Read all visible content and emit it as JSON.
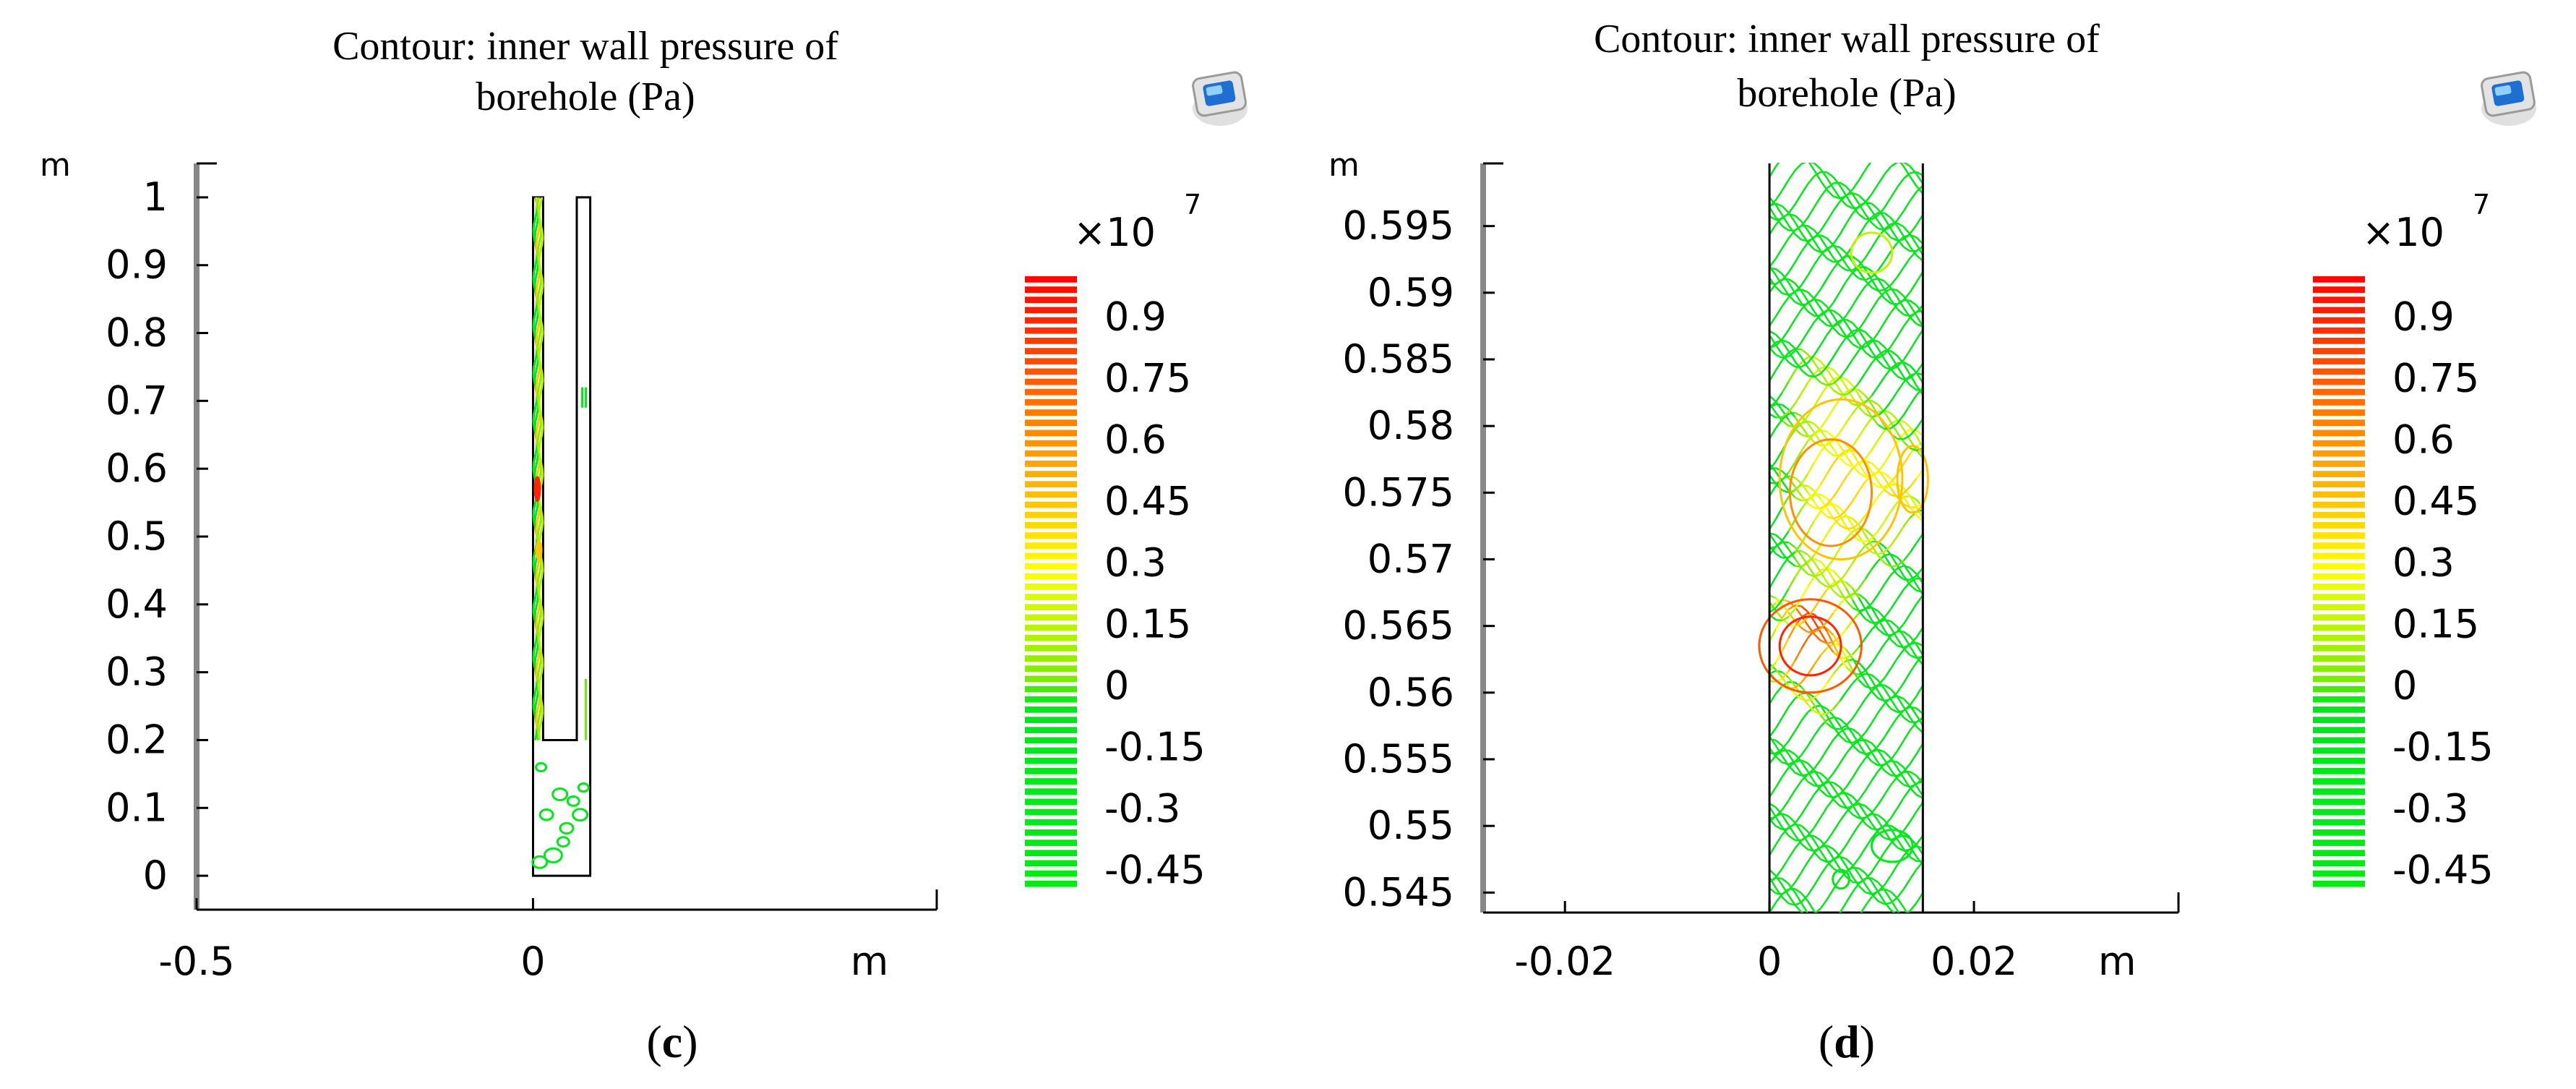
{
  "colors": {
    "scale_low": "#00ee11",
    "scale_mid_low": "#66ee00",
    "scale_mid": "#ffff00",
    "scale_mid_high": "#ff9900",
    "scale_high": "#ff0000",
    "axis": "#000000",
    "frame_left": "#888888",
    "icon_blue": "#1e6fd0"
  },
  "chart_data": [
    {
      "type": "contour",
      "panel_label": "(c)",
      "panel_letter": "c",
      "title_line1": "Contour: inner wall pressure of",
      "title_line2": "borehole  (Pa)",
      "xlabel": "m",
      "ylabel": "m",
      "x_ticks": [
        "-0.5",
        "0",
        "m"
      ],
      "x_tick_values": [
        -0.5,
        0,
        0.5
      ],
      "y_ticks": [
        "0",
        "0.1",
        "0.2",
        "0.3",
        "0.4",
        "0.5",
        "0.6",
        "0.7",
        "0.8",
        "0.9",
        "1"
      ],
      "y_tick_values": [
        0,
        0.1,
        0.2,
        0.3,
        0.4,
        0.5,
        0.6,
        0.7,
        0.8,
        0.9,
        1
      ],
      "xlim": [
        -0.5,
        0.6
      ],
      "ylim": [
        -0.05,
        1.05
      ],
      "geometry": {
        "outline": [
          [
            0,
            1
          ],
          [
            0.015,
            1
          ],
          [
            0.015,
            0.2
          ],
          [
            0.065,
            0.2
          ],
          [
            0.065,
            1
          ],
          [
            0.085,
            1
          ],
          [
            0.085,
            0
          ],
          [
            0,
            0
          ]
        ]
      },
      "colorbar": {
        "multiplier": "×10",
        "exponent": "7",
        "ticks": [
          "0.9",
          "0.75",
          "0.6",
          "0.45",
          "0.3",
          "0.15",
          "0",
          "-0.15",
          "-0.3",
          "-0.45"
        ],
        "tick_values": [
          0.9,
          0.75,
          0.6,
          0.45,
          0.3,
          0.15,
          0,
          -0.15,
          -0.3,
          -0.45
        ],
        "range": [
          -0.5,
          1.0
        ]
      }
    },
    {
      "type": "contour",
      "panel_label": "(d)",
      "panel_letter": "d",
      "title_line1": "Contour: inner wall pressure of",
      "title_line2": "borehole  (Pa)",
      "xlabel": "m",
      "ylabel": "m",
      "x_ticks": [
        "-0.02",
        "0",
        "0.02",
        "m"
      ],
      "x_tick_values": [
        -0.02,
        0,
        0.02,
        0.034
      ],
      "y_ticks": [
        "0.545",
        "0.55",
        "0.555",
        "0.56",
        "0.565",
        "0.57",
        "0.575",
        "0.58",
        "0.585",
        "0.59",
        "0.595"
      ],
      "y_tick_values": [
        0.545,
        0.55,
        0.555,
        0.56,
        0.565,
        0.57,
        0.575,
        0.58,
        0.585,
        0.59,
        0.595
      ],
      "xlim": [
        -0.028,
        0.04
      ],
      "ylim": [
        0.5435,
        0.5997
      ],
      "borehole_x_range": [
        0,
        0.015
      ],
      "colorbar": {
        "multiplier": "×10",
        "exponent": "7",
        "ticks": [
          "0.9",
          "0.75",
          "0.6",
          "0.45",
          "0.3",
          "0.15",
          "0",
          "-0.15",
          "-0.3",
          "-0.45"
        ],
        "tick_values": [
          0.9,
          0.75,
          0.6,
          0.45,
          0.3,
          0.15,
          0,
          -0.15,
          -0.3,
          -0.45
        ],
        "range": [
          -0.5,
          1.0
        ]
      }
    }
  ]
}
